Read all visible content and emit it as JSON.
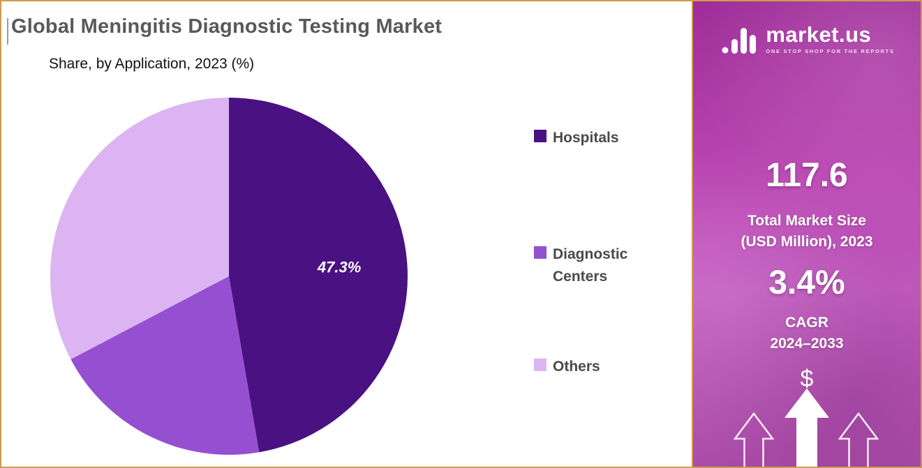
{
  "header": {
    "title": "Global Meningitis Diagnostic Testing Market",
    "subtitle": "Share, by Application, 2023 (%)"
  },
  "chart_data": {
    "type": "pie",
    "title": "Global Meningitis Diagnostic Testing Market",
    "subtitle": "Share, by Application, 2023 (%)",
    "unit": "%",
    "year": "2023",
    "legend_position": "right",
    "start_angle_deg": 0,
    "slices": [
      {
        "label": "Hospitals",
        "value": 47.3,
        "color": "#4a1182",
        "data_label": "47.3%"
      },
      {
        "label": "Diagnostic Centers",
        "value": 20.0,
        "color": "#9450d1",
        "data_label": ""
      },
      {
        "label": "Others",
        "value": 32.7,
        "color": "#dcb4f2",
        "data_label": ""
      }
    ]
  },
  "panel": {
    "brand": "market.us",
    "tagline": "ONE STOP SHOP FOR THE REPORTS",
    "market_size": {
      "value": "117.6",
      "label_line1": "Total Market Size",
      "label_line2": "(USD Million), 2023"
    },
    "cagr": {
      "value": "3.4%",
      "label_line1": "CAGR",
      "label_line2": "2024–2033"
    },
    "dollar": "$"
  },
  "colors": {
    "frame_border": "#d09b4d",
    "panel_gradient_top": "#9e2b98",
    "panel_gradient_bottom": "#b04fae",
    "title_text": "#595959",
    "legend_text": "#4a4a4a",
    "pie_hospitals": "#4a1182",
    "pie_diagnostic_centers": "#9450d1",
    "pie_others": "#dcb4f2"
  }
}
